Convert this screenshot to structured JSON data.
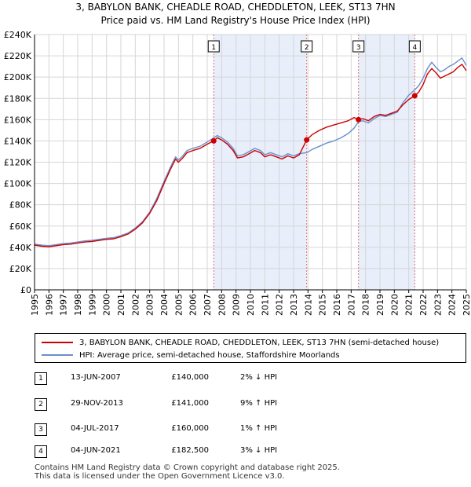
{
  "title_line1": "3, BABYLON BANK, CHEADLE ROAD, CHEDDLETON, LEEK, ST13 7HN",
  "title_line2": "Price paid vs. HM Land Registry's House Price Index (HPI)",
  "colors": {
    "property_line": "#cc0000",
    "hpi_line": "#6a8fcc",
    "shade": "#e8eefa",
    "vline": "#e07070",
    "marker": "#cc0000"
  },
  "chart_data": {
    "type": "line",
    "x_range": [
      1995,
      2025
    ],
    "ylim": [
      0,
      240000
    ],
    "grid": true,
    "x_ticks": [
      "1995",
      "1996",
      "1997",
      "1998",
      "1999",
      "2000",
      "2001",
      "2002",
      "2003",
      "2004",
      "2005",
      "2006",
      "2007",
      "2008",
      "2009",
      "2010",
      "2011",
      "2012",
      "2013",
      "2014",
      "2015",
      "2016",
      "2017",
      "2018",
      "2019",
      "2020",
      "2021",
      "2022",
      "2023",
      "2024",
      "2025"
    ],
    "y_ticks": [
      {
        "value": 0,
        "label": "£0"
      },
      {
        "value": 20000,
        "label": "£20K"
      },
      {
        "value": 40000,
        "label": "£40K"
      },
      {
        "value": 60000,
        "label": "£60K"
      },
      {
        "value": 80000,
        "label": "£80K"
      },
      {
        "value": 100000,
        "label": "£100K"
      },
      {
        "value": 120000,
        "label": "£120K"
      },
      {
        "value": 140000,
        "label": "£140K"
      },
      {
        "value": 160000,
        "label": "£160K"
      },
      {
        "value": 180000,
        "label": "£180K"
      },
      {
        "value": 200000,
        "label": "£200K"
      },
      {
        "value": 220000,
        "label": "£220K"
      },
      {
        "value": 240000,
        "label": "£240K"
      }
    ],
    "shaded_ranges": [
      [
        2007.45,
        2013.91
      ],
      [
        2017.51,
        2021.42
      ]
    ],
    "series": [
      {
        "name": "3, BABYLON BANK, CHEADLE ROAD, CHEDDLETON, LEEK, ST13 7HN (semi-detached house)",
        "color": "#cc0000",
        "points": [
          [
            1995.0,
            42000
          ],
          [
            1995.5,
            41000
          ],
          [
            1996.0,
            40500
          ],
          [
            1996.5,
            41500
          ],
          [
            1997.0,
            42500
          ],
          [
            1997.5,
            43000
          ],
          [
            1998.0,
            44000
          ],
          [
            1998.5,
            45000
          ],
          [
            1999.0,
            45500
          ],
          [
            1999.5,
            46500
          ],
          [
            2000.0,
            47500
          ],
          [
            2000.5,
            48000
          ],
          [
            2001.0,
            50000
          ],
          [
            2001.5,
            52500
          ],
          [
            2002.0,
            57000
          ],
          [
            2002.5,
            63000
          ],
          [
            2003.0,
            72000
          ],
          [
            2003.5,
            84000
          ],
          [
            2004.0,
            100000
          ],
          [
            2004.5,
            115000
          ],
          [
            2004.8,
            123000
          ],
          [
            2005.0,
            120000
          ],
          [
            2005.3,
            124000
          ],
          [
            2005.6,
            129000
          ],
          [
            2006.0,
            131000
          ],
          [
            2006.5,
            133000
          ],
          [
            2007.0,
            137000
          ],
          [
            2007.45,
            140000
          ],
          [
            2007.7,
            143000
          ],
          [
            2008.0,
            141000
          ],
          [
            2008.4,
            137000
          ],
          [
            2008.8,
            131000
          ],
          [
            2009.1,
            124000
          ],
          [
            2009.5,
            125000
          ],
          [
            2009.9,
            128000
          ],
          [
            2010.3,
            131000
          ],
          [
            2010.7,
            129000
          ],
          [
            2011.0,
            125000
          ],
          [
            2011.4,
            127000
          ],
          [
            2011.8,
            125000
          ],
          [
            2012.2,
            123000
          ],
          [
            2012.6,
            126000
          ],
          [
            2013.0,
            124000
          ],
          [
            2013.4,
            127000
          ],
          [
            2013.91,
            141000
          ],
          [
            2014.3,
            146000
          ],
          [
            2014.8,
            150000
          ],
          [
            2015.3,
            153000
          ],
          [
            2015.8,
            155000
          ],
          [
            2016.3,
            157000
          ],
          [
            2016.8,
            159000
          ],
          [
            2017.2,
            162000
          ],
          [
            2017.51,
            160000
          ],
          [
            2017.8,
            161000
          ],
          [
            2018.2,
            159000
          ],
          [
            2018.6,
            163000
          ],
          [
            2019.0,
            165000
          ],
          [
            2019.4,
            164000
          ],
          [
            2019.8,
            166000
          ],
          [
            2020.2,
            168000
          ],
          [
            2020.6,
            174000
          ],
          [
            2021.0,
            179000
          ],
          [
            2021.42,
            182500
          ],
          [
            2021.7,
            186000
          ],
          [
            2022.0,
            193000
          ],
          [
            2022.3,
            203000
          ],
          [
            2022.6,
            208000
          ],
          [
            2022.9,
            204000
          ],
          [
            2023.2,
            199000
          ],
          [
            2023.5,
            201000
          ],
          [
            2023.8,
            203000
          ],
          [
            2024.1,
            205000
          ],
          [
            2024.4,
            209000
          ],
          [
            2024.7,
            212000
          ],
          [
            2025.0,
            206000
          ]
        ]
      },
      {
        "name": "HPI: Average price, semi-detached house, Staffordshire Moorlands",
        "color": "#6a8fcc",
        "points": [
          [
            1995.0,
            43000
          ],
          [
            1995.5,
            42000
          ],
          [
            1996.0,
            41500
          ],
          [
            1996.5,
            42500
          ],
          [
            1997.0,
            43500
          ],
          [
            1997.5,
            44000
          ],
          [
            1998.0,
            45000
          ],
          [
            1998.5,
            46000
          ],
          [
            1999.0,
            46500
          ],
          [
            1999.5,
            47500
          ],
          [
            2000.0,
            48500
          ],
          [
            2000.5,
            49000
          ],
          [
            2001.0,
            51000
          ],
          [
            2001.5,
            53500
          ],
          [
            2002.0,
            58000
          ],
          [
            2002.5,
            64000
          ],
          [
            2003.0,
            73000
          ],
          [
            2003.5,
            86000
          ],
          [
            2004.0,
            102000
          ],
          [
            2004.5,
            117000
          ],
          [
            2004.8,
            125000
          ],
          [
            2005.0,
            122000
          ],
          [
            2005.3,
            126000
          ],
          [
            2005.6,
            131000
          ],
          [
            2006.0,
            133000
          ],
          [
            2006.5,
            135000
          ],
          [
            2007.0,
            139000
          ],
          [
            2007.45,
            143000
          ],
          [
            2007.7,
            145000
          ],
          [
            2008.0,
            143000
          ],
          [
            2008.4,
            139000
          ],
          [
            2008.8,
            133000
          ],
          [
            2009.1,
            126000
          ],
          [
            2009.5,
            127000
          ],
          [
            2009.9,
            130000
          ],
          [
            2010.3,
            133000
          ],
          [
            2010.7,
            131000
          ],
          [
            2011.0,
            127000
          ],
          [
            2011.4,
            129000
          ],
          [
            2011.8,
            127000
          ],
          [
            2012.2,
            125000
          ],
          [
            2012.6,
            128000
          ],
          [
            2013.0,
            126000
          ],
          [
            2013.4,
            128000
          ],
          [
            2013.91,
            129000
          ],
          [
            2014.3,
            132000
          ],
          [
            2014.8,
            135000
          ],
          [
            2015.3,
            138000
          ],
          [
            2015.8,
            140000
          ],
          [
            2016.3,
            143000
          ],
          [
            2016.8,
            147000
          ],
          [
            2017.2,
            152000
          ],
          [
            2017.51,
            158000
          ],
          [
            2017.8,
            159000
          ],
          [
            2018.2,
            157000
          ],
          [
            2018.6,
            161000
          ],
          [
            2019.0,
            164000
          ],
          [
            2019.4,
            163000
          ],
          [
            2019.8,
            165000
          ],
          [
            2020.2,
            167000
          ],
          [
            2020.6,
            176000
          ],
          [
            2021.0,
            183000
          ],
          [
            2021.42,
            188000
          ],
          [
            2021.7,
            192000
          ],
          [
            2022.0,
            199000
          ],
          [
            2022.3,
            208000
          ],
          [
            2022.6,
            214000
          ],
          [
            2022.9,
            209000
          ],
          [
            2023.2,
            205000
          ],
          [
            2023.5,
            207000
          ],
          [
            2023.8,
            210000
          ],
          [
            2024.1,
            212000
          ],
          [
            2024.4,
            215000
          ],
          [
            2024.7,
            218000
          ],
          [
            2025.0,
            211000
          ]
        ]
      }
    ],
    "sales": [
      {
        "label": "1",
        "x": 2007.45,
        "price": 140000
      },
      {
        "label": "2",
        "x": 2013.91,
        "price": 141000
      },
      {
        "label": "3",
        "x": 2017.51,
        "price": 160000
      },
      {
        "label": "4",
        "x": 2021.42,
        "price": 182500
      }
    ]
  },
  "legend": {
    "property_label": "3, BABYLON BANK, CHEADLE ROAD, CHEDDLETON, LEEK, ST13 7HN (semi-detached house)",
    "hpi_label": "HPI: Average price, semi-detached house, Staffordshire Moorlands"
  },
  "transactions": [
    {
      "num": "1",
      "date": "13-JUN-2007",
      "price": "£140,000",
      "hpi": "2% ↓ HPI"
    },
    {
      "num": "2",
      "date": "29-NOV-2013",
      "price": "£141,000",
      "hpi": "9% ↑ HPI"
    },
    {
      "num": "3",
      "date": "04-JUL-2017",
      "price": "£160,000",
      "hpi": "1% ↑ HPI"
    },
    {
      "num": "4",
      "date": "04-JUN-2021",
      "price": "£182,500",
      "hpi": "3% ↓ HPI"
    }
  ],
  "footer_line1": "Contains HM Land Registry data © Crown copyright and database right 2025.",
  "footer_line2": "This data is licensed under the Open Government Licence v3.0."
}
